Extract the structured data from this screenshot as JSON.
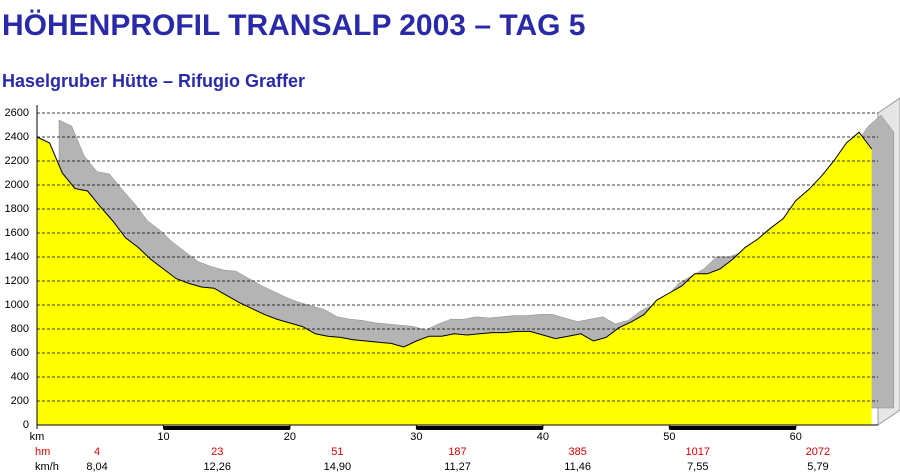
{
  "chart_data": {
    "type": "area",
    "title": "HÖHENPROFIL TRANSALP 2003 – TAG 5",
    "subtitle": "Haselgruber Hütte – Rifugio Graffer",
    "x": [
      0,
      1,
      2,
      3,
      4,
      5,
      6,
      7,
      8,
      9,
      10,
      11,
      12,
      13,
      14,
      15,
      16,
      17,
      18,
      19,
      20,
      21,
      22,
      23,
      24,
      25,
      26,
      27,
      28,
      29,
      30,
      31,
      32,
      33,
      34,
      35,
      36,
      37,
      38,
      39,
      40,
      41,
      42,
      43,
      44,
      45,
      46,
      47,
      48,
      49,
      50,
      51,
      52,
      53,
      54,
      55,
      56,
      57,
      58,
      59,
      60,
      61,
      62,
      63,
      64,
      65,
      66
    ],
    "values": [
      2400,
      2350,
      2100,
      1970,
      1950,
      1820,
      1700,
      1560,
      1480,
      1380,
      1300,
      1220,
      1180,
      1150,
      1140,
      1080,
      1020,
      970,
      920,
      880,
      850,
      820,
      760,
      740,
      730,
      710,
      700,
      690,
      680,
      650,
      700,
      740,
      740,
      760,
      750,
      760,
      770,
      770,
      780,
      780,
      750,
      720,
      740,
      760,
      700,
      730,
      810,
      860,
      920,
      1040,
      1100,
      1160,
      1260,
      1260,
      1300,
      1380,
      1480,
      1550,
      1640,
      1720,
      1870,
      1960,
      2070,
      2200,
      2350,
      2440,
      2300
    ],
    "color": "#ffff00",
    "xlim": [
      0,
      66.5
    ],
    "xticks": [
      {
        "value": 0,
        "label": "km"
      },
      10,
      20,
      30,
      40,
      50,
      60
    ],
    "ylim": [
      0,
      2600
    ],
    "yticks": [
      0,
      200,
      400,
      600,
      800,
      1000,
      1200,
      1400,
      1600,
      1800,
      2000,
      2200,
      2400,
      2600
    ],
    "grid": true,
    "hm_label": "hm",
    "hm": [
      4,
      23,
      51,
      187,
      385,
      1017,
      2072
    ],
    "kmh_label": "km/h",
    "kmh": [
      "8,04",
      "12,26",
      "14,90",
      "11,27",
      "11,46",
      "7,55",
      "5,79"
    ]
  }
}
